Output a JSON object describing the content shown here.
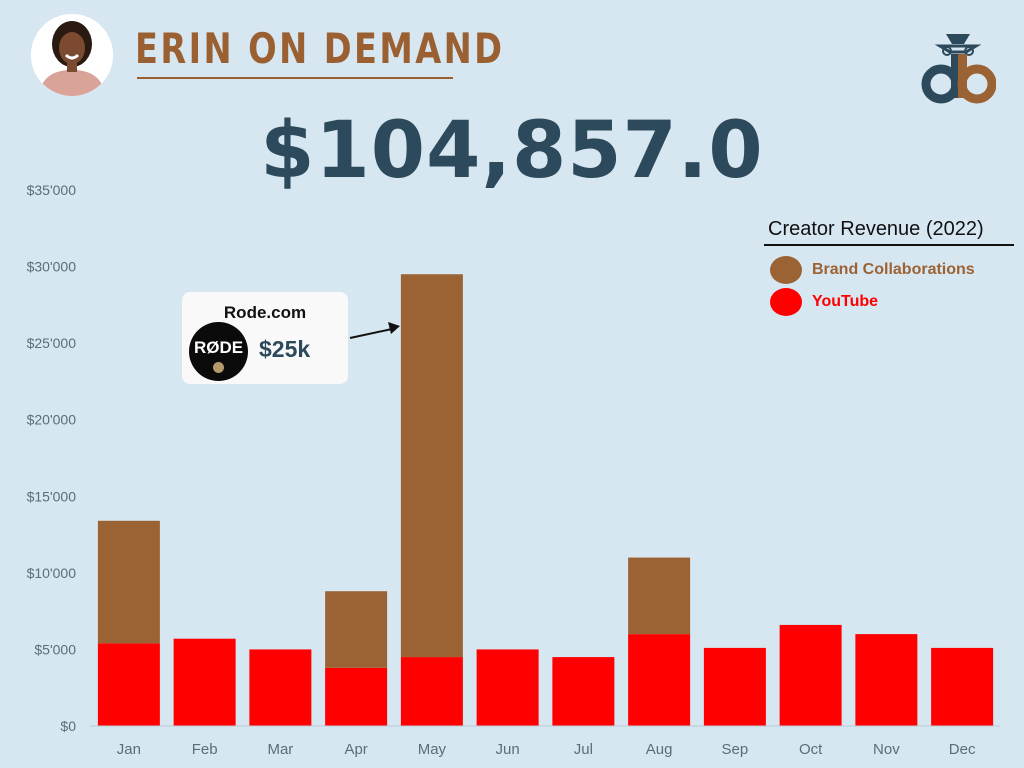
{
  "header": {
    "title": "ERIN ON DEMAND",
    "total": "$104,857.0",
    "logo_text": "db"
  },
  "legend": {
    "title": "Creator Revenue (2022)",
    "items": [
      {
        "label": "Brand Collaborations",
        "color": "#9b6333"
      },
      {
        "label": "YouTube",
        "color": "#ff0000"
      }
    ]
  },
  "callout": {
    "title": "Rode.com",
    "logo_text": "RØDE",
    "amount": "$25k"
  },
  "colors": {
    "background": "#d7e7f2",
    "brand": "#9b6333",
    "youtube": "#ff0000",
    "title_dark": "#2c4a5b"
  },
  "chart_data": {
    "type": "bar",
    "stacked": true,
    "title": "Creator Revenue (2022)",
    "categories": [
      "Jan",
      "Feb",
      "Mar",
      "Apr",
      "May",
      "Jun",
      "Jul",
      "Aug",
      "Sep",
      "Oct",
      "Nov",
      "Dec"
    ],
    "series": [
      {
        "name": "YouTube",
        "color": "#ff0000",
        "values": [
          5400,
          5700,
          5000,
          3800,
          4500,
          5000,
          4500,
          6000,
          5100,
          6600,
          6000,
          5100
        ]
      },
      {
        "name": "Brand Collaborations",
        "color": "#9b6333",
        "values": [
          8000,
          0,
          0,
          5000,
          25000,
          0,
          0,
          5000,
          0,
          0,
          0,
          0
        ]
      }
    ],
    "ylim": [
      0,
      35000
    ],
    "yticks": [
      0,
      5000,
      10000,
      15000,
      20000,
      25000,
      30000,
      35000
    ],
    "ytick_labels": [
      "$0",
      "$5'000",
      "$10'000",
      "$15'000",
      "$20'000",
      "$25'000",
      "$30'000",
      "$35'000"
    ],
    "grid": false,
    "legend_position": "top-right"
  }
}
